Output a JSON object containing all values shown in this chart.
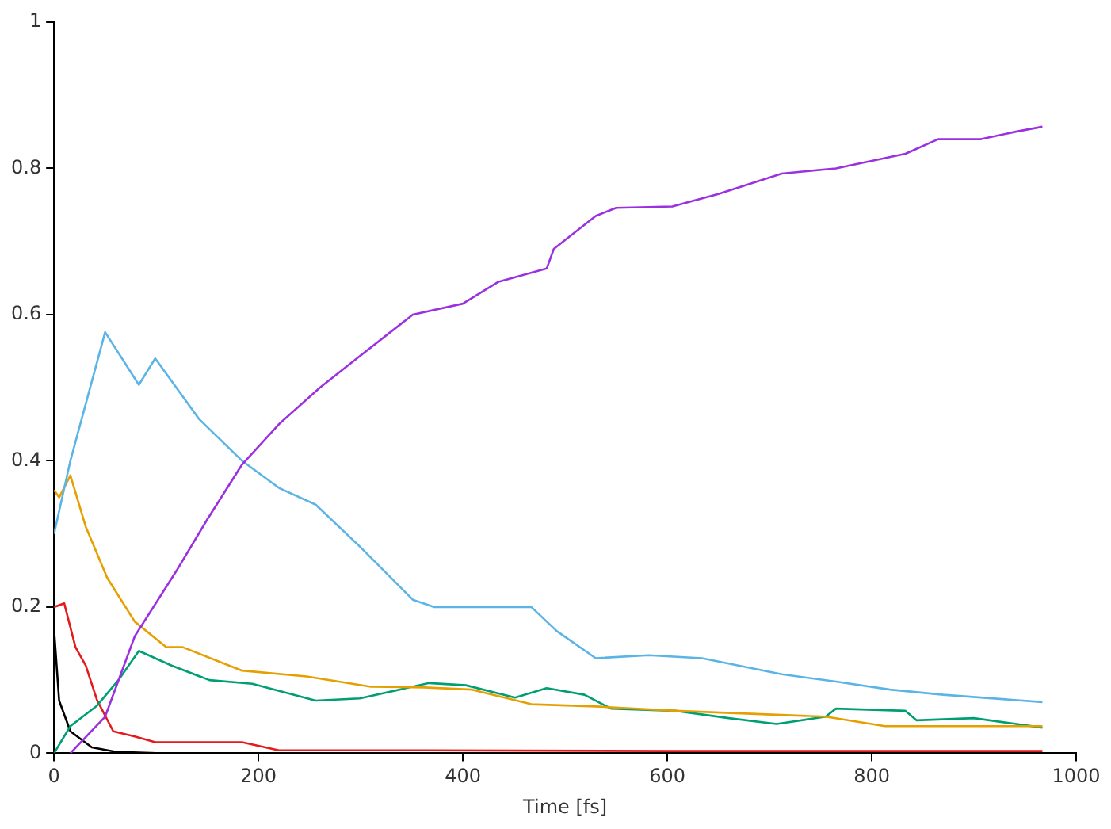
{
  "chart_data": {
    "type": "line",
    "xlabel": "Time [fs]",
    "xlim": [
      0,
      1000
    ],
    "xticks": [
      0,
      200,
      400,
      600,
      800,
      1000
    ],
    "ylim": [
      0,
      1
    ],
    "yticks": [
      0,
      0.2,
      0.4,
      0.6,
      0.8,
      1
    ],
    "grid": false,
    "legend": false,
    "marker": "none",
    "line_style": "solid",
    "series": [
      {
        "color": "#9b30e0",
        "x": [
          16,
          50,
          79,
          120,
          150,
          184,
          220,
          260,
          299,
          351,
          400,
          435,
          482,
          489,
          530,
          550,
          605,
          650,
          712,
          765,
          833,
          865,
          907,
          940,
          967
        ],
        "values": [
          0,
          0.05,
          0.16,
          0.25,
          0.32,
          0.395,
          0.45,
          0.5,
          0.543,
          0.6,
          0.615,
          0.645,
          0.663,
          0.69,
          0.735,
          0.746,
          0.748,
          0.765,
          0.793,
          0.8,
          0.82,
          0.84,
          0.84,
          0.85,
          0.857
        ]
      },
      {
        "color": "#5bb4e6",
        "x": [
          0,
          16,
          50,
          83,
          99,
          142,
          184,
          220,
          256,
          299,
          351,
          372,
          467,
          492,
          530,
          582,
          634,
          712,
          765,
          818,
          870,
          967
        ],
        "values": [
          0.3,
          0.4,
          0.576,
          0.504,
          0.54,
          0.457,
          0.4,
          0.363,
          0.34,
          0.283,
          0.21,
          0.2,
          0.2,
          0.167,
          0.13,
          0.134,
          0.13,
          0.108,
          0.098,
          0.087,
          0.08,
          0.07
        ]
      },
      {
        "color": "#e69f00",
        "x": [
          0,
          5,
          16,
          31,
          52,
          79,
          110,
          126,
          184,
          247,
          310,
          362,
          409,
          467,
          530,
          608,
          755,
          813,
          967
        ],
        "values": [
          0.36,
          0.35,
          0.38,
          0.31,
          0.24,
          0.18,
          0.145,
          0.145,
          0.113,
          0.105,
          0.091,
          0.09,
          0.087,
          0.067,
          0.064,
          0.058,
          0.05,
          0.037,
          0.037
        ]
      },
      {
        "color": "#009e73",
        "x": [
          0,
          16,
          42,
          63,
          83,
          115,
          152,
          194,
          256,
          299,
          367,
          403,
          451,
          482,
          519,
          545,
          608,
          660,
          707,
          755,
          765,
          833,
          844,
          900,
          967
        ],
        "values": [
          0,
          0.037,
          0.065,
          0.1,
          0.14,
          0.12,
          0.1,
          0.095,
          0.072,
          0.075,
          0.096,
          0.093,
          0.076,
          0.089,
          0.08,
          0.061,
          0.058,
          0.048,
          0.04,
          0.05,
          0.061,
          0.058,
          0.045,
          0.048,
          0.035
        ]
      },
      {
        "color": "#e41a1c",
        "x": [
          0,
          10,
          21,
          31,
          42,
          58,
          79,
          99,
          184,
          220,
          362,
          600,
          967
        ],
        "values": [
          0.2,
          0.205,
          0.145,
          0.12,
          0.073,
          0.03,
          0.023,
          0.015,
          0.015,
          0.004,
          0.004,
          0.003,
          0.003
        ]
      },
      {
        "color": "#000000",
        "x": [
          0,
          5,
          16,
          37,
          60,
          100
        ],
        "values": [
          0.17,
          0.072,
          0.03,
          0.008,
          0.002,
          0
        ]
      }
    ]
  }
}
